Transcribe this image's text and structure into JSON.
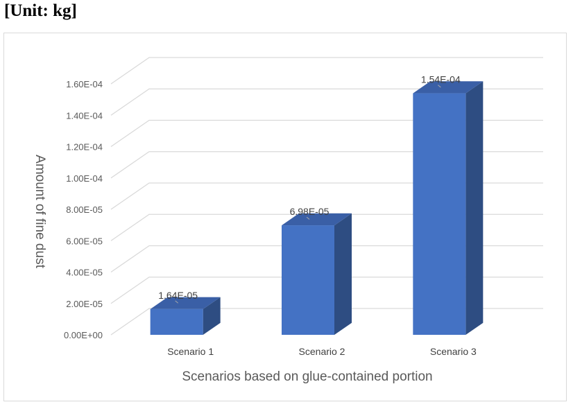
{
  "unit_label": "[Unit: kg]",
  "chart_data": {
    "type": "bar",
    "style": "3d-column",
    "categories": [
      "Scenario 1",
      "Scenario 2",
      "Scenario 3"
    ],
    "values": [
      1.64e-05,
      6.98e-05,
      0.000154
    ],
    "data_labels": [
      "1.64E-05",
      "6.98E-05",
      "1.54E-04"
    ],
    "title": "",
    "xlabel": "Scenarios based on glue-contained portion",
    "ylabel": "Amount of fine dust",
    "ylim": [
      0,
      0.00016
    ],
    "yticks": [
      "0.00E+00",
      "2.00E-05",
      "4.00E-05",
      "6.00E-05",
      "8.00E-05",
      "1.00E-04",
      "1.20E-04",
      "1.40E-04",
      "1.60E-04"
    ],
    "grid": true,
    "legend": "none",
    "colors": {
      "bar_front": "#4472c4",
      "bar_side": "#2e4d82",
      "bar_top": "#3a5fa6",
      "grid": "#d9d9d9"
    }
  }
}
